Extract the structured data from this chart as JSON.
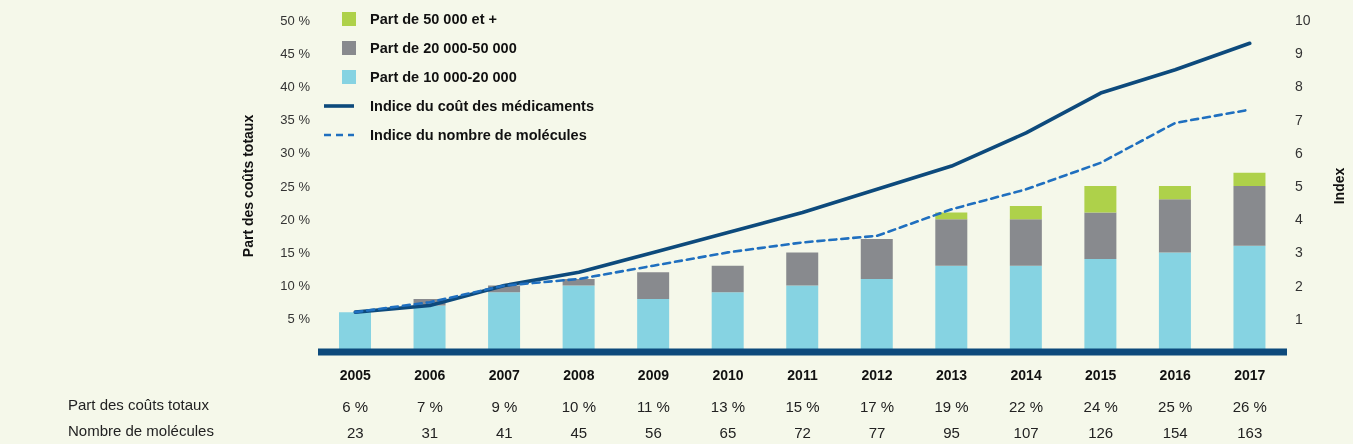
{
  "chart_data": {
    "type": "bar",
    "stacked": true,
    "ylabel": "Part des coûts totaux",
    "y2label": "Index",
    "categories": [
      "2005",
      "2006",
      "2007",
      "2008",
      "2009",
      "2010",
      "2011",
      "2012",
      "2013",
      "2014",
      "2015",
      "2016",
      "2017"
    ],
    "series": [
      {
        "name": "Part de 10 000-20 000",
        "color": "#86d3e2",
        "values": [
          6,
          7,
          9,
          10,
          8,
          9,
          10,
          11,
          13,
          13,
          14,
          15,
          16
        ]
      },
      {
        "name": "Part de 20 000-50 000",
        "color": "#888a8e",
        "values": [
          null,
          1,
          1,
          1,
          4,
          4,
          5,
          6,
          7,
          7,
          7,
          8,
          9
        ]
      },
      {
        "name": "Part de 50 000 et +",
        "color": "#aed14a",
        "values": [
          null,
          null,
          null,
          null,
          null,
          null,
          null,
          null,
          1,
          2,
          4,
          2,
          2
        ]
      },
      {
        "name": "Indice du coût des médicaments",
        "type": "line",
        "axis": "y2",
        "color": "#0d4a7c",
        "line_style": "solid",
        "values": [
          1.2,
          1.4,
          2.0,
          2.4,
          3.0,
          3.6,
          4.2,
          4.9,
          5.6,
          6.6,
          7.8,
          8.5,
          9.3
        ]
      },
      {
        "name": "Indice du nombre de molécules",
        "type": "line",
        "axis": "y2",
        "color": "#1f6fbf",
        "line_style": "dashed",
        "values": [
          1.2,
          1.5,
          2.0,
          2.2,
          2.6,
          3.0,
          3.3,
          3.5,
          4.3,
          4.9,
          5.7,
          6.9,
          7.3
        ]
      }
    ],
    "totals": [
      "6 %",
      "7 %",
      "9 %",
      "10 %",
      "11 %",
      "13 %",
      "15 %",
      "17 %",
      "19 %",
      "22 %",
      "24 %",
      "25 %",
      "26 %"
    ],
    "annotations": [
      "Part des coûts totaux",
      "Nombre de molécules",
      "23",
      "31",
      "41",
      "45",
      "56",
      "65",
      "72",
      "77",
      "95",
      "107",
      "126",
      "154",
      "163"
    ],
    "ylim": [
      0,
      50
    ],
    "yticks": [
      {
        "value": 5,
        "label": "5 %"
      },
      {
        "value": 10,
        "label": "10 %"
      },
      {
        "value": 15,
        "label": "15 %"
      },
      {
        "value": 20,
        "label": "20 %"
      },
      {
        "value": 25,
        "label": "25 %"
      },
      {
        "value": 30,
        "label": "30 %"
      },
      {
        "value": 35,
        "label": "35 %"
      },
      {
        "value": 40,
        "label": "40 %"
      },
      {
        "value": 45,
        "label": "45 %"
      },
      {
        "value": 50,
        "label": "50 %"
      }
    ],
    "y2lim": [
      0,
      10
    ],
    "y2ticks": [
      1,
      2,
      3,
      4,
      5,
      6,
      7,
      8,
      9,
      10
    ],
    "legend": "top left"
  }
}
